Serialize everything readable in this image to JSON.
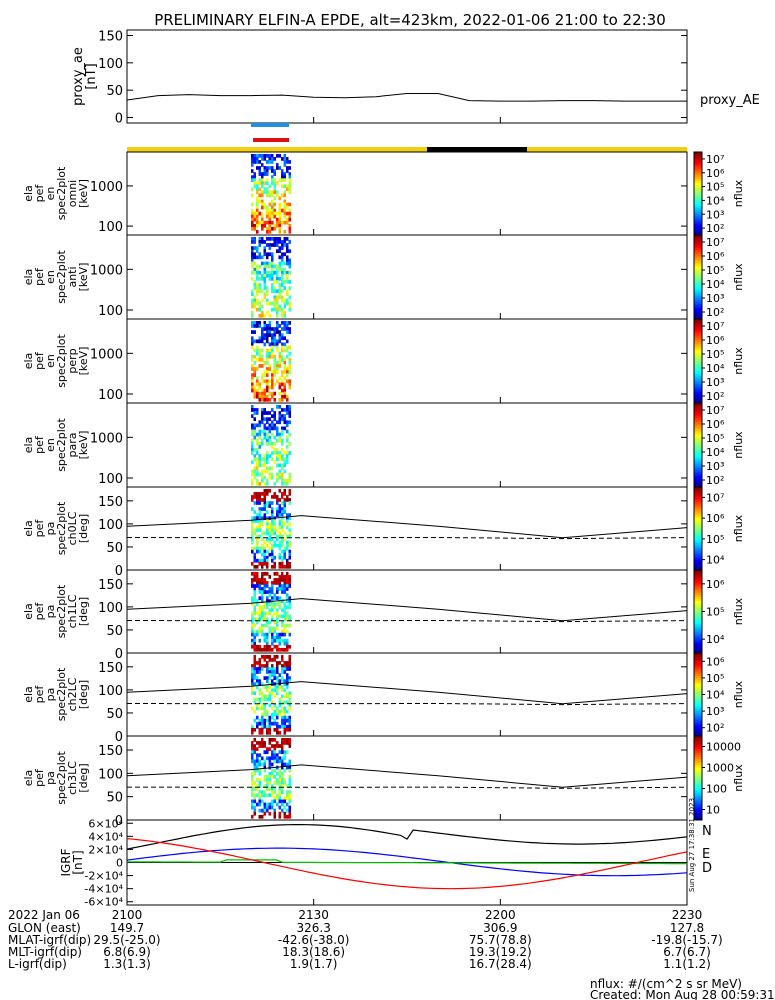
{
  "title": "PRELIMINARY ELFIN-A EPDE, alt=423km, 2022-01-06 21:00 to 22:30",
  "colors": {
    "background": "#ffffff",
    "axis": "#000000",
    "yellow_bar": "#f0d010",
    "black_segment": "#000000",
    "blue_segment": "#2090e0",
    "red_segment": "#e01010",
    "N_color": "#0000ff",
    "E_color": "#00c000",
    "D_color": "#ff0000",
    "grf_black": "#000000"
  },
  "chart_data": [
    {
      "type": "line",
      "name": "proxy_ae",
      "ylabel_lines": [
        "proxy_ae",
        "[nT]"
      ],
      "ylim": [
        -10,
        160
      ],
      "yticks": [
        "0",
        "50",
        "100",
        "150"
      ],
      "series_label": "proxy_AE",
      "x_minutes": [
        0,
        5,
        10,
        15,
        20,
        25,
        30,
        35,
        40,
        45,
        50,
        55,
        60,
        65,
        70,
        75,
        80,
        85,
        90
      ],
      "values": [
        32,
        40,
        42,
        40,
        40,
        41,
        37,
        36,
        38,
        44,
        44,
        31,
        30,
        30,
        31,
        31,
        30,
        30,
        30
      ]
    },
    {
      "type": "heatmap",
      "name": "ela_pef_en_spec2plot_omni",
      "ylabel_lines": [
        "ela",
        "pef",
        "en",
        "spec2plot",
        "omni",
        "[keV]"
      ],
      "yscale": "log",
      "yticks": [
        "100",
        "1000"
      ],
      "colorbar": {
        "label": "nflux",
        "ticks": [
          "10²",
          "10³",
          "10⁴",
          "10⁵",
          "10⁶",
          "10⁷"
        ]
      }
    },
    {
      "type": "heatmap",
      "name": "ela_pef_en_spec2plot_anti",
      "ylabel_lines": [
        "ela",
        "pef",
        "en",
        "spec2plot",
        "anti",
        "[keV]"
      ],
      "yscale": "log",
      "yticks": [
        "100",
        "1000"
      ],
      "colorbar": {
        "label": "nflux",
        "ticks": [
          "10²",
          "10³",
          "10⁴",
          "10⁵",
          "10⁶",
          "10⁷"
        ]
      }
    },
    {
      "type": "heatmap",
      "name": "ela_pef_en_spec2plot_perp",
      "ylabel_lines": [
        "ela",
        "pef",
        "en",
        "spec2plot",
        "perp",
        "[keV]"
      ],
      "yscale": "log",
      "yticks": [
        "100",
        "1000"
      ],
      "colorbar": {
        "label": "nflux",
        "ticks": [
          "10²",
          "10³",
          "10⁴",
          "10⁵",
          "10⁶",
          "10⁷"
        ]
      }
    },
    {
      "type": "heatmap",
      "name": "ela_pef_en_spec2plot_para",
      "ylabel_lines": [
        "ela",
        "pef",
        "en",
        "spec2plot",
        "para",
        "[keV]"
      ],
      "yscale": "log",
      "yticks": [
        "100",
        "1000"
      ],
      "colorbar": {
        "label": "nflux",
        "ticks": [
          "10²",
          "10³",
          "10⁴",
          "10⁵",
          "10⁶",
          "10⁷"
        ]
      }
    },
    {
      "type": "heatmap",
      "name": "ela_pef_pa_spec2plot_ch0LC",
      "ylabel_lines": [
        "ela",
        "pef",
        "pa",
        "spec2plot",
        "ch0LC",
        "[deg]"
      ],
      "ylim": [
        0,
        180
      ],
      "yticks": [
        "0",
        "50",
        "100",
        "150"
      ],
      "colorbar": {
        "label": "nflux",
        "ticks": [
          "10⁴",
          "10⁵",
          "10⁶",
          "10⁷"
        ]
      }
    },
    {
      "type": "heatmap",
      "name": "ela_pef_pa_spec2plot_ch1LC",
      "ylabel_lines": [
        "ela",
        "pef",
        "pa",
        "spec2plot",
        "ch1LC",
        "[deg]"
      ],
      "ylim": [
        0,
        180
      ],
      "yticks": [
        "0",
        "50",
        "100",
        "150"
      ],
      "colorbar": {
        "label": "nflux",
        "ticks": [
          "10⁴",
          "10⁵",
          "10⁶"
        ]
      }
    },
    {
      "type": "heatmap",
      "name": "ela_pef_pa_spec2plot_ch2LC",
      "ylabel_lines": [
        "ela",
        "pef",
        "pa",
        "spec2plot",
        "ch2LC",
        "[deg]"
      ],
      "ylim": [
        0,
        180
      ],
      "yticks": [
        "0",
        "50",
        "100",
        "150"
      ],
      "colorbar": {
        "label": "nflux",
        "ticks": [
          "10²",
          "10³",
          "10⁴",
          "10⁵",
          "10⁶"
        ]
      }
    },
    {
      "type": "heatmap",
      "name": "ela_pef_pa_spec2plot_ch3LC",
      "ylabel_lines": [
        "ela",
        "pef",
        "pa",
        "spec2plot",
        "ch3LC",
        "[deg]"
      ],
      "ylim": [
        0,
        180
      ],
      "yticks": [
        "0",
        "50",
        "100",
        "150"
      ],
      "colorbar": {
        "label": "nflux",
        "ticks": [
          "10",
          "100",
          "1000",
          "10000"
        ]
      }
    },
    {
      "type": "line",
      "name": "igrf",
      "ylabel_lines": [
        "IGRF",
        "[nT]"
      ],
      "ylim": [
        -65000,
        65000
      ],
      "yticks": [
        "-6×10⁴",
        "-4×10⁴",
        "-2×10⁴",
        "0",
        "2×10⁴",
        "4×10⁴",
        "6×10⁴"
      ],
      "legend": [
        "N",
        "E",
        "D"
      ]
    }
  ],
  "time_axis": {
    "date_label": "2022 Jan 06",
    "ticks": [
      "2100",
      "2130",
      "2200",
      "2230"
    ]
  },
  "orbit_table": {
    "rows": [
      {
        "label": "GLON (east)",
        "values": [
          "149.7",
          "326.3",
          "306.9",
          "127.8"
        ]
      },
      {
        "label": "MLAT-igrf(dip)",
        "values": [
          "29.5(-25.0)",
          "-42.6(-38.0)",
          "75.7(78.8)",
          "-19.8(-15.7)"
        ]
      },
      {
        "label": "MLT-igrf(dip)",
        "values": [
          "6.8(6.9)",
          "18.3(18.6)",
          "19.3(19.2)",
          "6.7(6.7)"
        ]
      },
      {
        "label": "L-igrf(dip)",
        "values": [
          "1.3(1.3)",
          "1.9(1.7)",
          "16.7(28.4)",
          "1.1(1.2)"
        ]
      }
    ]
  },
  "footer": {
    "units": "nflux: #/(cm^2 s sr MeV)",
    "created": "Created: Mon Aug 28 00:59:31 2023",
    "side_stamp": "Sun Aug 27 17:38:31 2023"
  }
}
